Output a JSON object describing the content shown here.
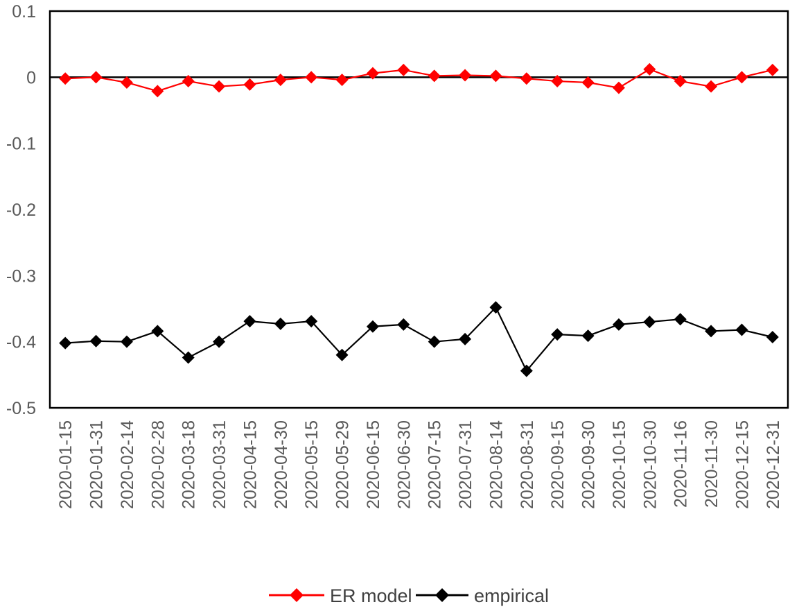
{
  "chart_data": {
    "type": "line",
    "title": "",
    "xlabel": "",
    "ylabel": "",
    "ylim": [
      -0.5,
      0.1
    ],
    "yticks": [
      0.1,
      0,
      -0.1,
      -0.2,
      -0.3,
      -0.4,
      -0.5
    ],
    "ytick_labels": [
      "0.1",
      "0",
      "-0.1",
      "-0.2",
      "-0.3",
      "-0.4",
      "-0.5"
    ],
    "grid": false,
    "zero_line": true,
    "legend_position": "bottom",
    "categories": [
      "2020-01-15",
      "2020-01-31",
      "2020-02-14",
      "2020-02-28",
      "2020-03-18",
      "2020-03-31",
      "2020-04-15",
      "2020-04-30",
      "2020-05-15",
      "2020-05-29",
      "2020-06-15",
      "2020-06-30",
      "2020-07-15",
      "2020-07-31",
      "2020-08-14",
      "2020-08-31",
      "2020-09-15",
      "2020-09-30",
      "2020-10-15",
      "2020-10-30",
      "2020-11-16",
      "2020-11-30",
      "2020-12-15",
      "2020-12-31"
    ],
    "series": [
      {
        "name": "ER model",
        "color": "#ff0000",
        "marker": "diamond",
        "values": [
          -0.002,
          0.0,
          -0.008,
          -0.021,
          -0.006,
          -0.014,
          -0.011,
          -0.004,
          0.0,
          -0.004,
          0.006,
          0.011,
          0.002,
          0.003,
          0.002,
          -0.002,
          -0.006,
          -0.008,
          -0.016,
          0.012,
          -0.006,
          -0.014,
          0.0,
          0.011
        ]
      },
      {
        "name": "empirical",
        "color": "#000000",
        "marker": "diamond",
        "values": [
          -0.402,
          -0.399,
          -0.4,
          -0.384,
          -0.424,
          -0.4,
          -0.369,
          -0.373,
          -0.369,
          -0.42,
          -0.377,
          -0.374,
          -0.4,
          -0.396,
          -0.348,
          -0.444,
          -0.389,
          -0.391,
          -0.374,
          -0.37,
          -0.366,
          -0.384,
          -0.382,
          -0.393
        ]
      }
    ]
  }
}
